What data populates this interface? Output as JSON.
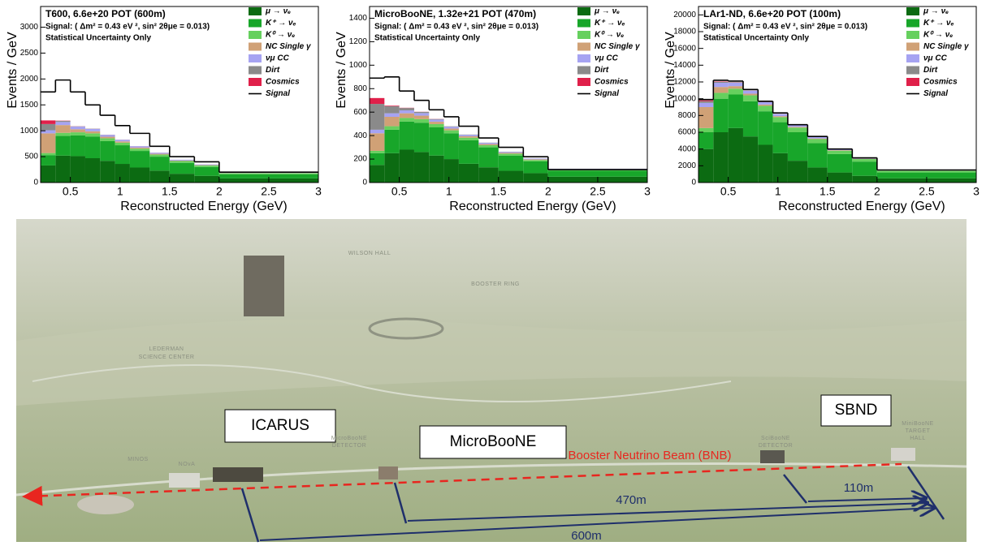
{
  "chart_data": [
    {
      "type": "stacked-histogram",
      "title": "T600, 6.6e+20 POT (600m)",
      "subtitle": "Signal: ( Δm² = 0.43 eV ², sin² 2θμe = 0.013)",
      "note": "Statistical Uncertainty Only",
      "x_label": "Reconstructed Energy (GeV)",
      "y_label": "Events / GeV",
      "bins": [
        0.2,
        0.35,
        0.5,
        0.65,
        0.8,
        0.95,
        1.1,
        1.3,
        1.5,
        1.75,
        2,
        3
      ],
      "xlim": [
        0.2,
        3
      ],
      "xticks": [
        0.5,
        1,
        1.5,
        2,
        2.5,
        3
      ],
      "ylim": [
        0,
        3400
      ],
      "yticks": [
        0,
        500,
        1000,
        1500,
        2000,
        2500,
        3000
      ],
      "legend": "upper right",
      "series": [
        {
          "name": "μ → νₑ",
          "color": "#0c6b12",
          "values": [
            330,
            520,
            510,
            470,
            420,
            360,
            290,
            230,
            170,
            130,
            80
          ]
        },
        {
          "name": "K⁺ → νₑ",
          "color": "#18a62a",
          "values": [
            200,
            380,
            400,
            420,
            380,
            360,
            320,
            270,
            210,
            170,
            80
          ]
        },
        {
          "name": "K⁰ → νₑ",
          "color": "#66d05e",
          "values": [
            40,
            60,
            60,
            60,
            55,
            50,
            45,
            40,
            35,
            30,
            20
          ]
        },
        {
          "name": "NC Single γ",
          "color": "#d0a176",
          "values": [
            380,
            150,
            60,
            40,
            30,
            25,
            20,
            15,
            10,
            8,
            5
          ]
        },
        {
          "name": "νμ CC",
          "color": "#a6a3f2",
          "values": [
            60,
            60,
            50,
            45,
            35,
            30,
            25,
            20,
            15,
            12,
            10
          ]
        },
        {
          "name": "Dirt",
          "color": "#8a8a8a",
          "values": [
            120,
            20,
            5,
            5,
            3,
            2,
            2,
            1,
            1,
            1,
            1
          ]
        },
        {
          "name": "Cosmics",
          "color": "#e0204a",
          "values": [
            70,
            5,
            2,
            1,
            1,
            1,
            1,
            1,
            0,
            0,
            0
          ]
        }
      ],
      "signal": {
        "name": "Signal",
        "color": "#000000",
        "values": [
          1750,
          1980,
          1750,
          1500,
          1300,
          1100,
          950,
          700,
          500,
          400,
          200
        ]
      }
    },
    {
      "type": "stacked-histogram",
      "title": "MicroBooNE, 1.32e+21 POT (470m)",
      "subtitle": "Signal: ( Δm² = 0.43 eV ², sin² 2θμe = 0.013)",
      "note": "Statistical Uncertainty Only",
      "x_label": "Reconstructed Energy (GeV)",
      "y_label": "Events / GeV",
      "bins": [
        0.2,
        0.35,
        0.5,
        0.65,
        0.8,
        0.95,
        1.1,
        1.3,
        1.5,
        1.75,
        2,
        3
      ],
      "xlim": [
        0.2,
        3
      ],
      "xticks": [
        0.5,
        1,
        1.5,
        2,
        2.5,
        3
      ],
      "ylim": [
        0,
        1500
      ],
      "yticks": [
        0,
        200,
        400,
        600,
        800,
        1000,
        1200,
        1400
      ],
      "legend": "upper right",
      "series": [
        {
          "name": "μ → νₑ",
          "color": "#0c6b12",
          "values": [
            150,
            250,
            280,
            260,
            230,
            200,
            160,
            130,
            100,
            80,
            50
          ]
        },
        {
          "name": "K⁺ → νₑ",
          "color": "#18a62a",
          "values": [
            100,
            200,
            240,
            250,
            240,
            220,
            200,
            170,
            130,
            100,
            50
          ]
        },
        {
          "name": "K⁰ → νₑ",
          "color": "#66d05e",
          "values": [
            20,
            30,
            30,
            30,
            28,
            25,
            22,
            18,
            15,
            12,
            8
          ]
        },
        {
          "name": "NC Single γ",
          "color": "#d0a176",
          "values": [
            150,
            80,
            40,
            30,
            20,
            15,
            12,
            10,
            8,
            6,
            4
          ]
        },
        {
          "name": "νμ CC",
          "color": "#a6a3f2",
          "values": [
            30,
            30,
            25,
            22,
            18,
            15,
            12,
            10,
            8,
            6,
            5
          ]
        },
        {
          "name": "Dirt",
          "color": "#8a8a8a",
          "values": [
            220,
            60,
            20,
            10,
            5,
            4,
            3,
            2,
            2,
            1,
            1
          ]
        },
        {
          "name": "Cosmics",
          "color": "#e0204a",
          "values": [
            50,
            5,
            2,
            1,
            1,
            0,
            0,
            0,
            0,
            0,
            0
          ]
        }
      ],
      "signal": {
        "name": "Signal",
        "color": "#000000",
        "values": [
          890,
          900,
          780,
          700,
          620,
          560,
          480,
          380,
          300,
          220,
          110
        ]
      }
    },
    {
      "type": "stacked-histogram",
      "title": "LAr1-ND, 6.6e+20 POT (100m)",
      "subtitle": "Signal: ( Δm² = 0.43 eV ², sin² 2θμe = 0.013)",
      "note": "Statistical Uncertainty Only",
      "x_label": "Reconstructed Energy (GeV)",
      "y_label": "Events / GeV",
      "bins": [
        0.2,
        0.35,
        0.5,
        0.65,
        0.8,
        0.95,
        1.1,
        1.3,
        1.5,
        1.75,
        2,
        3
      ],
      "xlim": [
        0.2,
        3
      ],
      "xticks": [
        0.5,
        1,
        1.5,
        2,
        2.5,
        3
      ],
      "ylim": [
        0,
        21000
      ],
      "yticks": [
        0,
        2000,
        4000,
        6000,
        8000,
        10000,
        12000,
        14000,
        16000,
        18000,
        20000
      ],
      "legend": "upper right",
      "series": [
        {
          "name": "μ → νₑ",
          "color": "#0c6b12",
          "values": [
            4000,
            6000,
            6500,
            5500,
            4500,
            3500,
            2600,
            1800,
            1200,
            800,
            500
          ]
        },
        {
          "name": "K⁺ → νₑ",
          "color": "#18a62a",
          "values": [
            2000,
            4000,
            4000,
            4200,
            4000,
            3700,
            3400,
            2900,
            2200,
            1700,
            700
          ]
        },
        {
          "name": "K⁰ → νₑ",
          "color": "#66d05e",
          "values": [
            500,
            700,
            700,
            700,
            650,
            600,
            550,
            480,
            400,
            300,
            200
          ]
        },
        {
          "name": "NC Single γ",
          "color": "#d0a176",
          "values": [
            2500,
            700,
            300,
            200,
            150,
            120,
            100,
            80,
            60,
            40,
            30
          ]
        },
        {
          "name": "νμ CC",
          "color": "#a6a3f2",
          "values": [
            500,
            500,
            400,
            350,
            300,
            250,
            200,
            160,
            120,
            90,
            60
          ]
        },
        {
          "name": "Dirt",
          "color": "#8a8a8a",
          "values": [
            200,
            100,
            50,
            30,
            20,
            15,
            10,
            8,
            5,
            5,
            3
          ]
        },
        {
          "name": "Cosmics",
          "color": "#e0204a",
          "values": [
            100,
            50,
            20,
            10,
            10,
            5,
            5,
            3,
            2,
            2,
            2
          ]
        }
      ],
      "signal": {
        "name": "Signal",
        "color": "#000000",
        "values": [
          9900,
          12200,
          12100,
          11100,
          9700,
          8300,
          6900,
          5500,
          4000,
          2950,
          1500
        ]
      }
    }
  ],
  "diagram": {
    "places": [
      "WILSON HALL",
      "BOOSTER RING",
      "LEDERMAN",
      "SCIENCE CENTER",
      "MINOS",
      "NOvA",
      "MicroBooNE",
      "DETECTOR",
      "SciBooNE",
      "DETECTOR",
      "MiniBooNE",
      "TARGET",
      "HALL"
    ],
    "boxes": [
      "ICARUS",
      "MicroBooNE",
      "SBND"
    ],
    "beam": "Booster Neutrino Beam (BNB)",
    "distances": [
      "470m",
      "110m",
      "600m"
    ]
  }
}
